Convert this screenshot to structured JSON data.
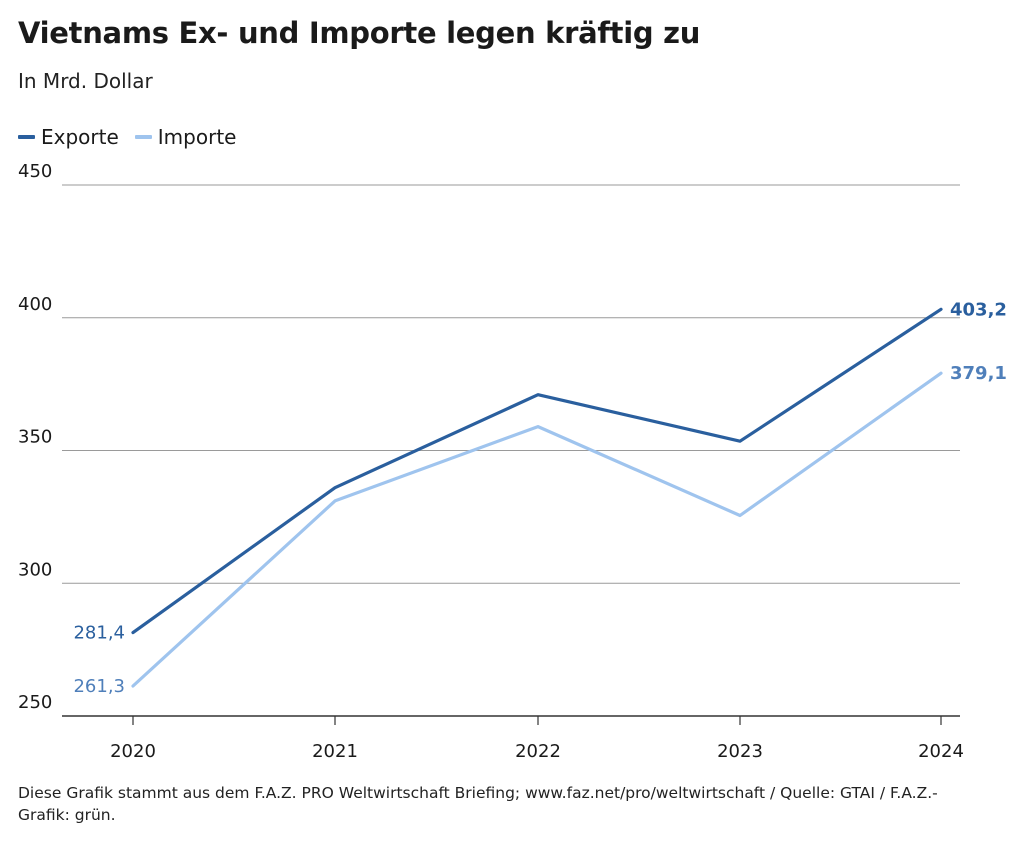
{
  "chart_data": {
    "type": "line",
    "title": "Vietnams Ex- und Importe legen kräftig zu",
    "subtitle": "In Mrd. Dollar",
    "x": [
      "2020",
      "2021",
      "2022",
      "2023",
      "2024"
    ],
    "y_ticks": [
      "250",
      "300",
      "350",
      "400",
      "450"
    ],
    "ylim": [
      250,
      450
    ],
    "grid": true,
    "legend_placement": "top-left",
    "series": [
      {
        "name": "Exporte",
        "values": [
          281.4,
          336,
          371,
          353.5,
          403.2
        ],
        "color": "#2a5f9e",
        "start_label": "281,4",
        "end_label": "403,2",
        "label_color": "#2a5f9e"
      },
      {
        "name": "Importe",
        "values": [
          261.3,
          331,
          359,
          325.5,
          379.1
        ],
        "color": "#9fc4ee",
        "start_label": "261,3",
        "end_label": "379,1",
        "label_color": "#4f7fba"
      }
    ],
    "source": "Diese Grafik stammt aus dem F.A.Z. PRO Weltwirtschaft Briefing; www.faz.net/pro/weltwirtschaft / Quelle: GTAI / F.A.Z.-Grafik: grün."
  }
}
